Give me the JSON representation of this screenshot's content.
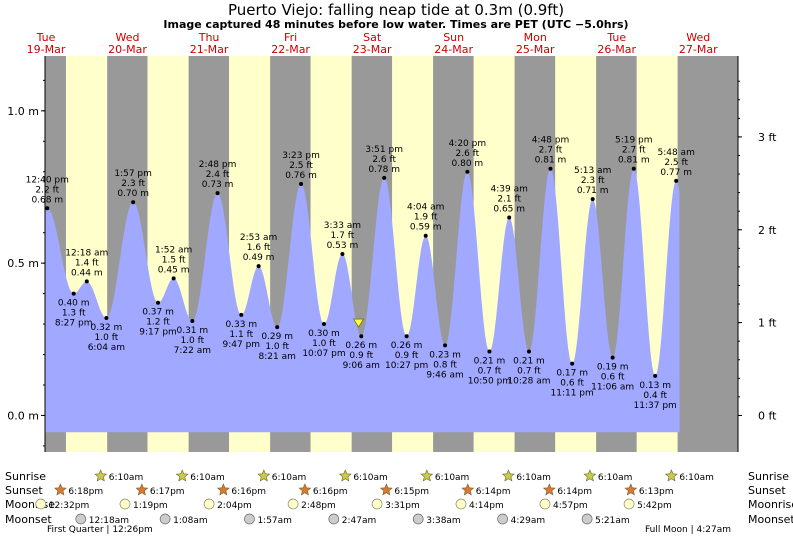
{
  "title": "Puerto Viejo: falling  neap tide at 0.3m (0.9ft)",
  "subtitle": "Image captured 48 minutes before low water. Times are PET (UTC −5.0hrs)",
  "days": [
    {
      "dow": "Tue",
      "date": "19-Mar"
    },
    {
      "dow": "Wed",
      "date": "20-Mar"
    },
    {
      "dow": "Thu",
      "date": "21-Mar"
    },
    {
      "dow": "Fri",
      "date": "22-Mar"
    },
    {
      "dow": "Sat",
      "date": "23-Mar"
    },
    {
      "dow": "Sun",
      "date": "24-Mar"
    },
    {
      "dow": "Mon",
      "date": "25-Mar"
    },
    {
      "dow": "Tue",
      "date": "26-Mar"
    },
    {
      "dow": "Wed",
      "date": "27-Mar"
    }
  ],
  "colors": {
    "night": "#999999",
    "day": "#ffffcc",
    "tide": "#a0a8ff",
    "day_label": "#cc0000",
    "sun": "#cccc44",
    "sunset_star": "#dd7733",
    "moon": "#ffffcc",
    "moonset": "#cccccc"
  },
  "chart_data": {
    "type": "area",
    "title": "Puerto Viejo: falling  neap tide at 0.3m (0.9ft)",
    "left_axis_ticks": [
      "1.0 m",
      "0.5 m",
      "0.0 m"
    ],
    "right_axis_ticks": [
      "3 ft",
      "2 ft",
      "1 ft",
      "0 ft"
    ],
    "ylim_m": [
      -0.12,
      1.18
    ],
    "xlim_hours": [
      0,
      204
    ],
    "day_start_hours": [
      0,
      24,
      48,
      72,
      96,
      120,
      144,
      168,
      192
    ],
    "daylight_hours": [
      [
        6.17,
        18.3
      ],
      [
        30.17,
        42.28
      ],
      [
        54.17,
        66.27
      ],
      [
        78.17,
        90.27
      ],
      [
        102.17,
        114.25
      ],
      [
        126.17,
        138.23
      ],
      [
        150.17,
        162.23
      ],
      [
        174.17,
        186.22
      ]
    ],
    "extremes": [
      {
        "hour": 0.67,
        "time": "12:40 pm",
        "ft": "2.2 ft",
        "m": 0.68,
        "m_label": "0.68 m",
        "type": "high"
      },
      {
        "hour": 8.45,
        "time": "8:27 pm",
        "ft": "1.3 ft",
        "m": 0.4,
        "m_label": "0.40 m",
        "type": "low"
      },
      {
        "hour": 12.3,
        "time": "12:18 am",
        "ft": "1.4 ft",
        "m": 0.44,
        "m_label": "0.44 m",
        "type": "high"
      },
      {
        "hour": 18.07,
        "time": "6:04 am",
        "ft": "1.0 ft",
        "m": 0.32,
        "m_label": "0.32 m",
        "type": "low"
      },
      {
        "hour": 25.95,
        "time": "1:57 pm",
        "ft": "2.3 ft",
        "m": 0.7,
        "m_label": "0.70 m",
        "type": "high"
      },
      {
        "hour": 33.28,
        "time": "9:17 pm",
        "ft": "1.2 ft",
        "m": 0.37,
        "m_label": "0.37 m",
        "type": "low"
      },
      {
        "hour": 37.87,
        "time": "1:52 am",
        "ft": "1.5 ft",
        "m": 0.45,
        "m_label": "0.45 m",
        "type": "high"
      },
      {
        "hour": 43.37,
        "time": "7:22 am",
        "ft": "1.0 ft",
        "m": 0.31,
        "m_label": "0.31 m",
        "type": "low"
      },
      {
        "hour": 50.8,
        "time": "2:48 pm",
        "ft": "2.4 ft",
        "m": 0.73,
        "m_label": "0.73 m",
        "type": "high"
      },
      {
        "hour": 57.78,
        "time": "9:47 pm",
        "ft": "1.1 ft",
        "m": 0.33,
        "m_label": "0.33 m",
        "type": "low"
      },
      {
        "hour": 62.88,
        "time": "2:53 am",
        "ft": "1.6 ft",
        "m": 0.49,
        "m_label": "0.49 m",
        "type": "high"
      },
      {
        "hour": 68.35,
        "time": "8:21 am",
        "ft": "1.0 ft",
        "m": 0.29,
        "m_label": "0.29 m",
        "type": "low"
      },
      {
        "hour": 75.38,
        "time": "3:23 pm",
        "ft": "2.5 ft",
        "m": 0.76,
        "m_label": "0.76 m",
        "type": "high"
      },
      {
        "hour": 82.12,
        "time": "10:07 pm",
        "ft": "1.0 ft",
        "m": 0.3,
        "m_label": "0.30 m",
        "type": "low"
      },
      {
        "hour": 87.55,
        "time": "3:33 am",
        "ft": "1.7 ft",
        "m": 0.53,
        "m_label": "0.53 m",
        "type": "high"
      },
      {
        "hour": 93.1,
        "time": "9:06 am",
        "ft": "0.9 ft",
        "m": 0.26,
        "m_label": "0.26 m",
        "type": "low"
      },
      {
        "hour": 99.85,
        "time": "3:51 pm",
        "ft": "2.6 ft",
        "m": 0.78,
        "m_label": "0.78 m",
        "type": "high"
      },
      {
        "hour": 106.45,
        "time": "10:27 pm",
        "ft": "0.9 ft",
        "m": 0.26,
        "m_label": "0.26 m",
        "type": "low"
      },
      {
        "hour": 112.07,
        "time": "4:04 am",
        "ft": "1.9 ft",
        "m": 0.59,
        "m_label": "0.59 m",
        "type": "high"
      },
      {
        "hour": 117.77,
        "time": "9:46 am",
        "ft": "0.8 ft",
        "m": 0.23,
        "m_label": "0.23 m",
        "type": "low"
      },
      {
        "hour": 124.33,
        "time": "4:20 pm",
        "ft": "2.6 ft",
        "m": 0.8,
        "m_label": "0.80 m",
        "type": "high"
      },
      {
        "hour": 130.83,
        "time": "10:50 pm",
        "ft": "0.7 ft",
        "m": 0.21,
        "m_label": "0.21 m",
        "type": "low"
      },
      {
        "hour": 136.65,
        "time": "4:39 am",
        "ft": "2.1 ft",
        "m": 0.65,
        "m_label": "0.65 m",
        "type": "high"
      },
      {
        "hour": 142.47,
        "time": "10:28 am",
        "ft": "0.7 ft",
        "m": 0.21,
        "m_label": "0.21 m",
        "type": "low"
      },
      {
        "hour": 148.8,
        "time": "4:48 pm",
        "ft": "2.7 ft",
        "m": 0.81,
        "m_label": "0.81 m",
        "type": "high"
      },
      {
        "hour": 155.18,
        "time": "11:11 pm",
        "ft": "0.6 ft",
        "m": 0.17,
        "m_label": "0.17 m",
        "type": "low"
      },
      {
        "hour": 161.22,
        "time": "5:13 am",
        "ft": "2.3 ft",
        "m": 0.71,
        "m_label": "0.71 m",
        "type": "high"
      },
      {
        "hour": 167.1,
        "time": "11:06 am",
        "ft": "0.6 ft",
        "m": 0.19,
        "m_label": "0.19 m",
        "type": "low"
      },
      {
        "hour": 173.32,
        "time": "5:19 pm",
        "ft": "2.7 ft",
        "m": 0.81,
        "m_label": "0.81 m",
        "type": "high"
      },
      {
        "hour": 179.62,
        "time": "11:37 pm",
        "ft": "0.4 ft",
        "m": 0.13,
        "m_label": "0.13 m",
        "type": "low"
      },
      {
        "hour": 185.8,
        "time": "5:48 am",
        "ft": "2.5 ft",
        "m": 0.77,
        "m_label": "0.77 m",
        "type": "high"
      }
    ],
    "data_start_hour": 0,
    "data_end_hour": 186.8,
    "current": {
      "hour": 92.3,
      "m": 0.3
    }
  },
  "astro": {
    "row_labels": {
      "sunrise": "Sunrise",
      "sunset": "Sunset",
      "moonrise": "Moonrise",
      "moonset": "Moonset"
    },
    "sunrise": [
      {
        "hour": 18.17,
        "text": "6:10am"
      },
      {
        "hour": 42.17,
        "text": "6:10am"
      },
      {
        "hour": 66.17,
        "text": "6:10am"
      },
      {
        "hour": 90.17,
        "text": "6:10am"
      },
      {
        "hour": 114.17,
        "text": "6:10am"
      },
      {
        "hour": 138.17,
        "text": "6:10am"
      },
      {
        "hour": 162.17,
        "text": "6:10am"
      },
      {
        "hour": 186.17,
        "text": "6:10am"
      }
    ],
    "sunset": [
      {
        "hour": 6.3,
        "text": "6:18pm"
      },
      {
        "hour": 30.28,
        "text": "6:17pm"
      },
      {
        "hour": 54.27,
        "text": "6:16pm"
      },
      {
        "hour": 78.27,
        "text": "6:16pm"
      },
      {
        "hour": 102.25,
        "text": "6:15pm"
      },
      {
        "hour": 126.23,
        "text": "6:14pm"
      },
      {
        "hour": 150.23,
        "text": "6:14pm"
      },
      {
        "hour": 174.22,
        "text": "6:13pm"
      }
    ],
    "moonrise": [
      {
        "hour": 0.53,
        "text": "12:32pm"
      },
      {
        "hour": 25.32,
        "text": "1:19pm"
      },
      {
        "hour": 50.07,
        "text": "2:04pm"
      },
      {
        "hour": 74.8,
        "text": "2:48pm"
      },
      {
        "hour": 99.52,
        "text": "3:31pm"
      },
      {
        "hour": 124.23,
        "text": "4:14pm"
      },
      {
        "hour": 148.95,
        "text": "4:57pm"
      },
      {
        "hour": 173.7,
        "text": "5:42pm"
      }
    ],
    "moonset": [
      {
        "hour": 12.3,
        "text": "12:18am"
      },
      {
        "hour": 37.13,
        "text": "1:08am"
      },
      {
        "hour": 61.95,
        "text": "1:57am"
      },
      {
        "hour": 86.78,
        "text": "2:47am"
      },
      {
        "hour": 111.63,
        "text": "3:38am"
      },
      {
        "hour": 136.48,
        "text": "4:29am"
      },
      {
        "hour": 161.35,
        "text": "5:21am"
      }
    ],
    "moon_phase_left": "First Quarter | 12:26pm",
    "moon_phase_right": "Full Moon | 4:27am"
  }
}
